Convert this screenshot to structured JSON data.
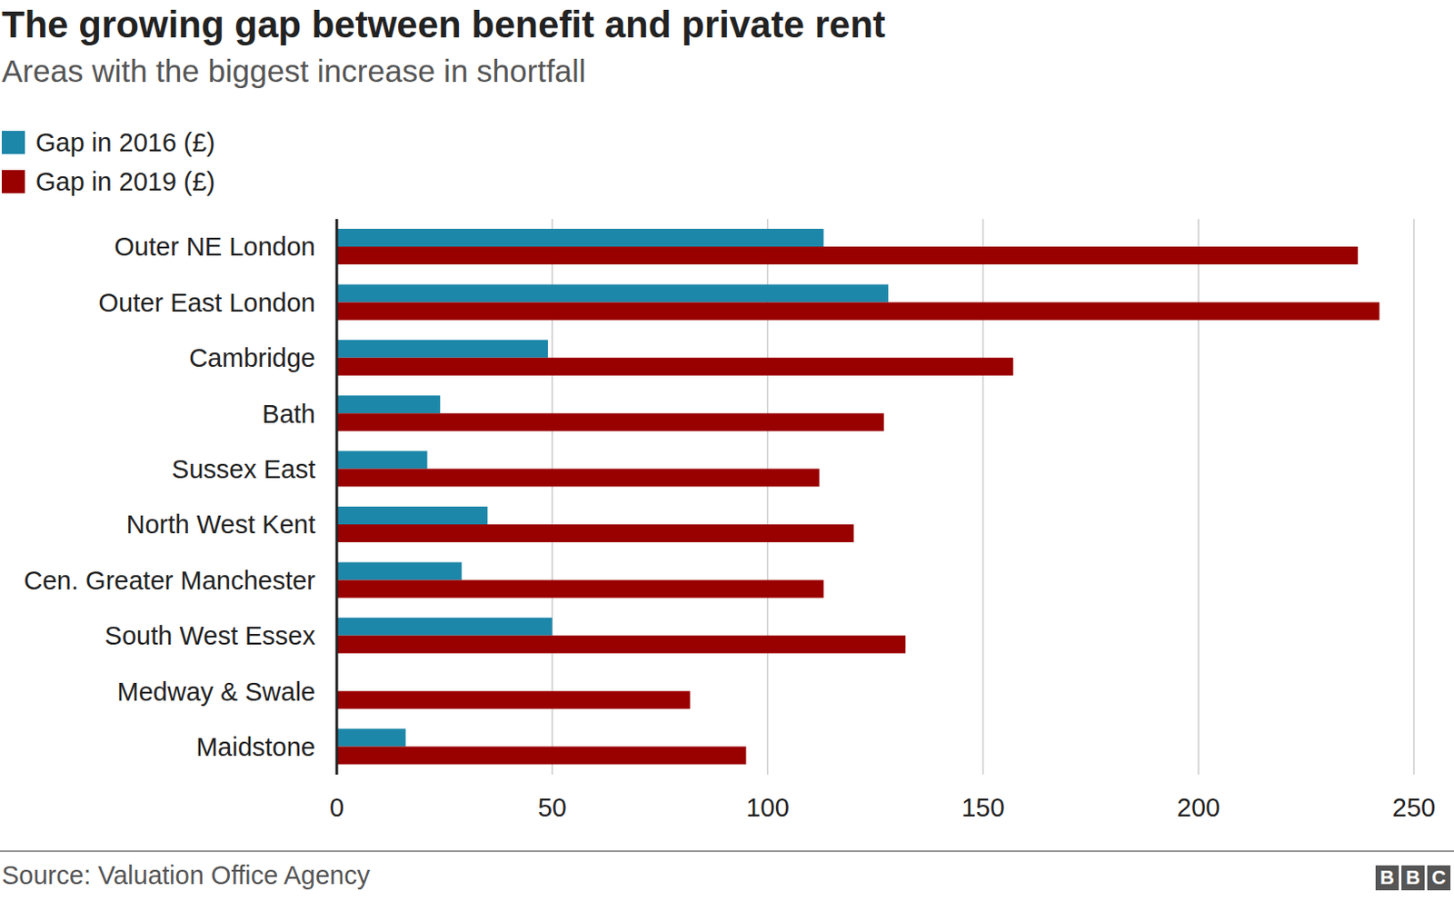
{
  "chart_data": {
    "type": "bar",
    "title": "The growing gap between benefit and private rent",
    "subtitle": "Areas with the biggest increase in shortfall",
    "orientation": "horizontal",
    "categories": [
      "Outer NE London",
      "Outer East London",
      "Cambridge",
      "Bath",
      "Sussex East",
      "North West Kent",
      "Cen. Greater Manchester",
      "South West Essex",
      "Medway & Swale",
      "Maidstone"
    ],
    "series": [
      {
        "name": "Gap in 2016 (£)",
        "color": "#1d87a9",
        "values": [
          113,
          128,
          49,
          24,
          21,
          35,
          29,
          50,
          0,
          16
        ]
      },
      {
        "name": "Gap in 2019 (£)",
        "color": "#990000",
        "values": [
          237,
          242,
          157,
          127,
          112,
          120,
          113,
          132,
          82,
          95
        ]
      }
    ],
    "xlim": [
      0,
      250
    ],
    "xticks": [
      0,
      50,
      100,
      150,
      200,
      250
    ],
    "grid": true,
    "legend": "top-left",
    "source": "Source: Valuation Office Agency",
    "logo": "BBC"
  }
}
